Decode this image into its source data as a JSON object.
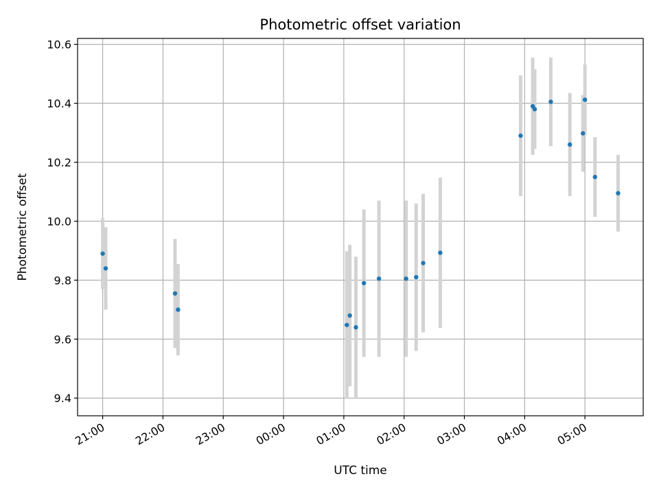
{
  "chart_data": {
    "type": "scatter",
    "title": "Photometric offset variation",
    "xlabel": "UTC time",
    "ylabel": "Photometric offset",
    "grid": true,
    "xlim": [
      "20:35",
      "05:58"
    ],
    "ylim": [
      9.34,
      10.62
    ],
    "x_ticks": [
      "21:00",
      "22:00",
      "23:00",
      "00:00",
      "01:00",
      "02:00",
      "03:00",
      "04:00",
      "05:00"
    ],
    "y_ticks": [
      9.4,
      9.6,
      9.8,
      10.0,
      10.2,
      10.4,
      10.6
    ],
    "colors": {
      "points": "#1f77b4",
      "errorbars": "#d3d3d3",
      "grid": "#b0b0b0"
    },
    "series": [
      {
        "points": [
          {
            "x": "21:00",
            "y": 9.89,
            "err": 0.12
          },
          {
            "x": "21:03",
            "y": 9.84,
            "err": 0.14
          },
          {
            "x": "22:12",
            "y": 9.755,
            "err": 0.185
          },
          {
            "x": "22:15",
            "y": 9.7,
            "err": 0.155
          },
          {
            "x": "01:03",
            "y": 9.648,
            "err": 0.25
          },
          {
            "x": "01:06",
            "y": 9.68,
            "err": 0.24
          },
          {
            "x": "01:12",
            "y": 9.64,
            "err": 0.24
          },
          {
            "x": "01:20",
            "y": 9.79,
            "err": 0.25
          },
          {
            "x": "01:35",
            "y": 9.805,
            "err": 0.265
          },
          {
            "x": "02:02",
            "y": 9.805,
            "err": 0.265
          },
          {
            "x": "02:12",
            "y": 9.81,
            "err": 0.25
          },
          {
            "x": "02:19",
            "y": 9.858,
            "err": 0.235
          },
          {
            "x": "02:36",
            "y": 9.893,
            "err": 0.255
          },
          {
            "x": "03:56",
            "y": 10.29,
            "err": 0.205
          },
          {
            "x": "04:08",
            "y": 10.39,
            "err": 0.165
          },
          {
            "x": "04:10",
            "y": 10.38,
            "err": 0.135
          },
          {
            "x": "04:26",
            "y": 10.405,
            "err": 0.15
          },
          {
            "x": "04:45",
            "y": 10.26,
            "err": 0.175
          },
          {
            "x": "04:58",
            "y": 10.298,
            "err": 0.13
          },
          {
            "x": "05:00",
            "y": 10.412,
            "err": 0.12
          },
          {
            "x": "05:10",
            "y": 10.15,
            "err": 0.135
          },
          {
            "x": "05:33",
            "y": 10.095,
            "err": 0.13
          }
        ]
      }
    ]
  }
}
